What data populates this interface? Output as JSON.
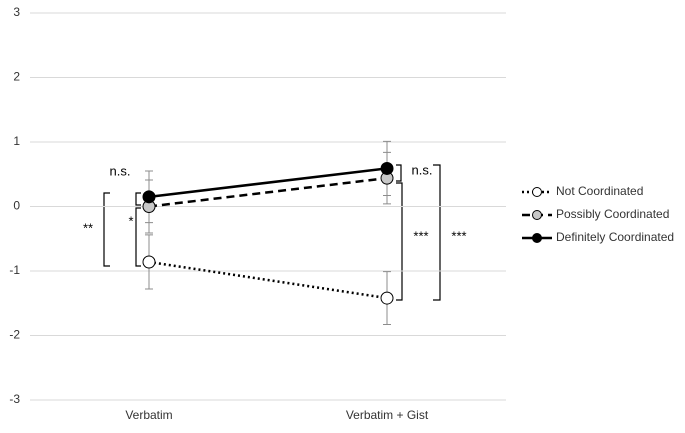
{
  "chart_data": {
    "type": "line",
    "categories": [
      "Verbatim",
      "Verbatim + Gist"
    ],
    "series": [
      {
        "name": "Not Coordinated",
        "color": "#000000",
        "marker_fill": "#ffffff",
        "dash": "dotted",
        "values": [
          -0.86,
          -1.42
        ],
        "errors": [
          0.42,
          0.41
        ]
      },
      {
        "name": "Possibly Coordinated",
        "color": "#000000",
        "marker_fill": "#c8c8c8",
        "dash": "dashed",
        "values": [
          0.0,
          0.44
        ],
        "errors": [
          0.41,
          0.4
        ]
      },
      {
        "name": "Definitely Coordinated",
        "color": "#000000",
        "marker_fill": "#000000",
        "dash": "solid",
        "values": [
          0.15,
          0.59
        ],
        "errors": [
          0.4,
          0.42
        ]
      }
    ],
    "ylim": [
      -3,
      3
    ],
    "yticks": [
      -3,
      -2,
      -1,
      0,
      1,
      2,
      3
    ],
    "grid": true,
    "legend": "right",
    "annotations": [
      "n.s.",
      "*",
      "**",
      "n.s.",
      "***",
      "***"
    ]
  }
}
